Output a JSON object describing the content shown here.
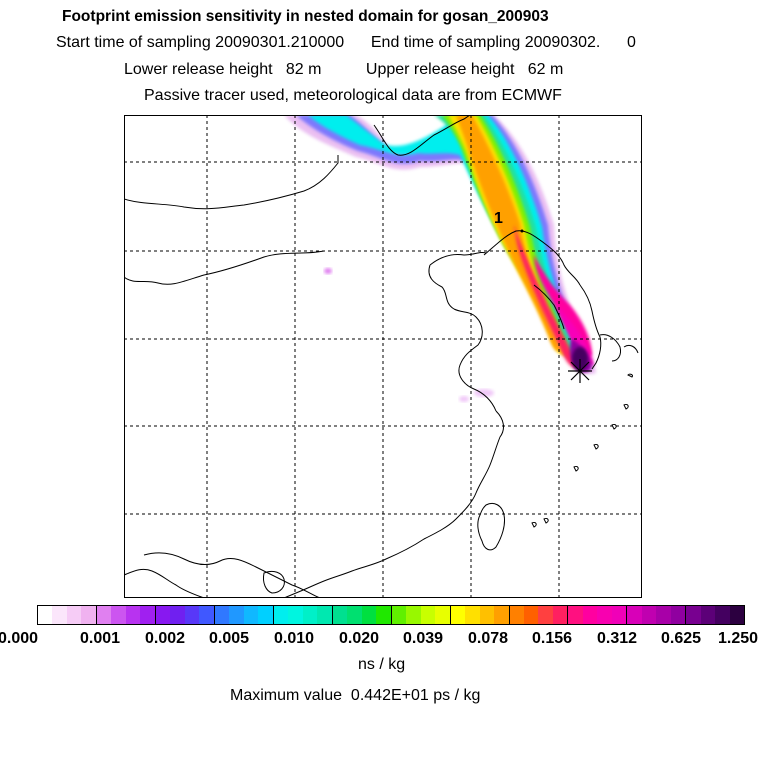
{
  "header": {
    "title": "Footprint emission sensitivity in nested domain for gosan_200903",
    "sampling_line": "Start time of sampling 20090301.210000      End time of sampling 20090302.      0",
    "release_line": "Lower release height   82 m          Upper release height   62 m",
    "tracer_line": "Passive tracer used, meteorological data are from ECMWF"
  },
  "map": {
    "receptor_marker": "1",
    "release_site_marker": "star-icon"
  },
  "colorbar": {
    "tick_labels": [
      "0.000",
      "0.001",
      "0.002",
      "0.005",
      "0.010",
      "0.020",
      "0.039",
      "0.078",
      "0.156",
      "0.312",
      "0.625",
      "1.250"
    ],
    "colors": [
      "#ffffff",
      "#fbe6fb",
      "#f6ccf6",
      "#f0b2f0",
      "#e080f0",
      "#cc55f0",
      "#b833f0",
      "#a020f0",
      "#8818f0",
      "#7020f0",
      "#5838f8",
      "#4058ff",
      "#3078ff",
      "#2098ff",
      "#10b8ff",
      "#00d0ff",
      "#00eeee",
      "#00f5e0",
      "#00f0c8",
      "#00e8b0",
      "#00e090",
      "#00e070",
      "#00e040",
      "#20e800",
      "#60f000",
      "#98f800",
      "#c8ff00",
      "#e8ff00",
      "#ffff00",
      "#ffe000",
      "#ffc000",
      "#ffa000",
      "#ff8000",
      "#ff6000",
      "#ff4040",
      "#ff2060",
      "#ff1080",
      "#ff00a0",
      "#f800b0",
      "#f000b8",
      "#d800b8",
      "#c000b0",
      "#a800a8",
      "#9000a0",
      "#780090",
      "#5c0078",
      "#440060",
      "#2c0040"
    ],
    "units": "ns / kg"
  },
  "footer": {
    "max_value_line": "Maximum value  0.442E+01 ps / kg"
  }
}
